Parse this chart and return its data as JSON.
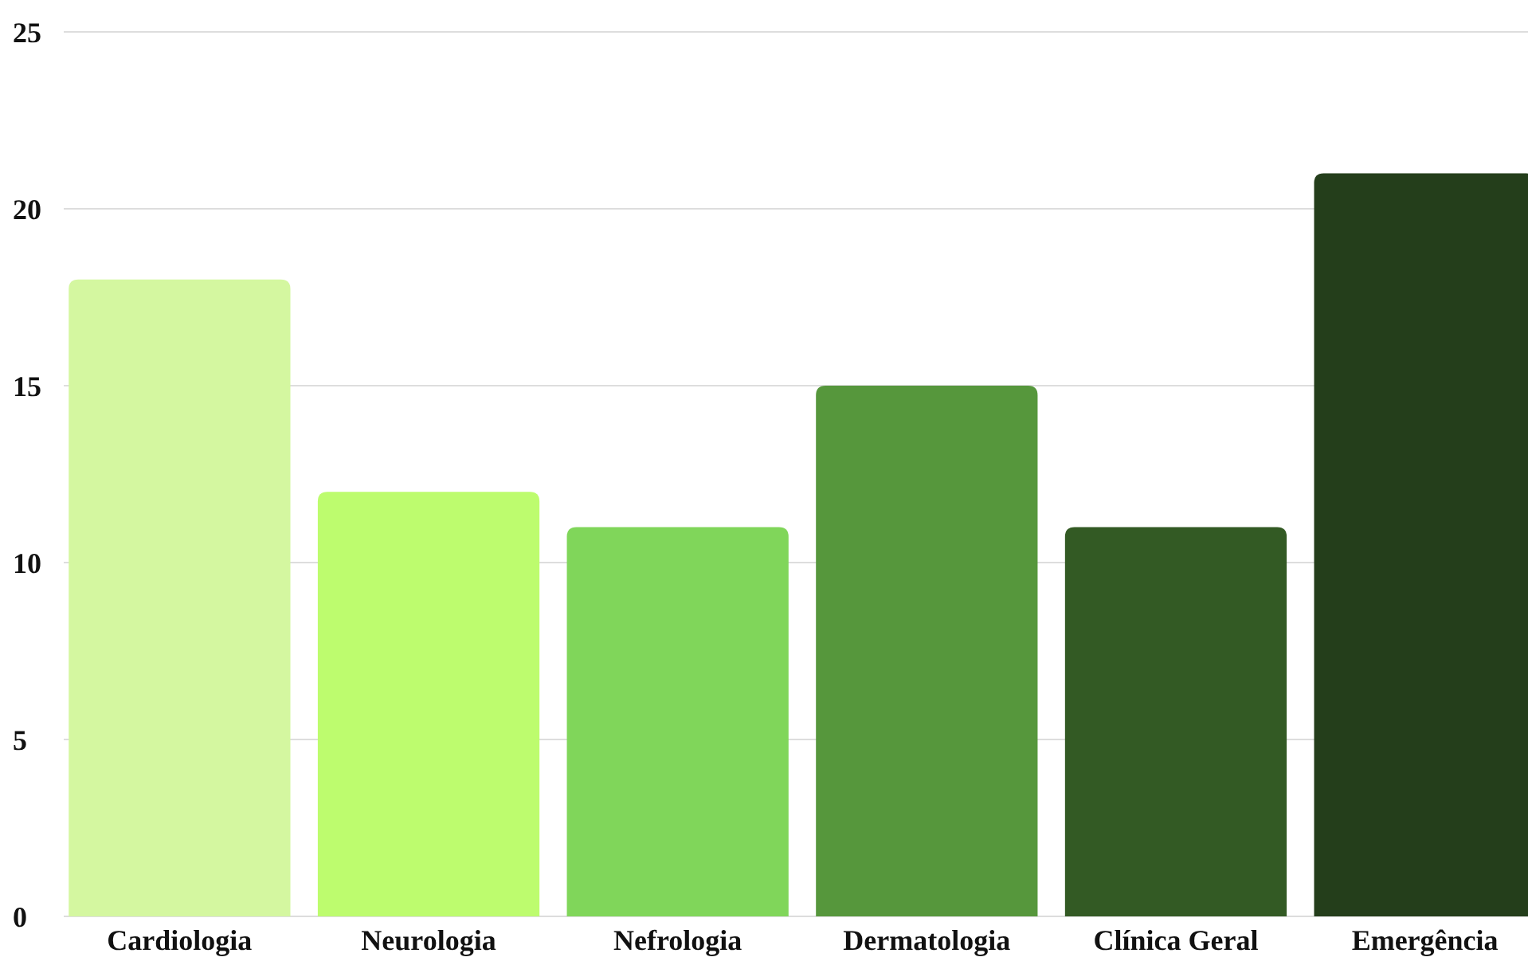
{
  "chart_data": {
    "type": "bar",
    "categories": [
      "Cardiologia",
      "Neurologia",
      "Nefrologia",
      "Dermatologia",
      "Clínica Geral",
      "Emergência"
    ],
    "values": [
      18,
      12,
      11,
      15,
      11,
      21
    ],
    "colors": [
      "#d4f7a0",
      "#bdfc6e",
      "#80d65a",
      "#56973c",
      "#335a24",
      "#243e1b"
    ],
    "ylim": [
      0,
      25
    ],
    "yticks": [
      0,
      5,
      10,
      15,
      20,
      25
    ],
    "grid": "y"
  }
}
